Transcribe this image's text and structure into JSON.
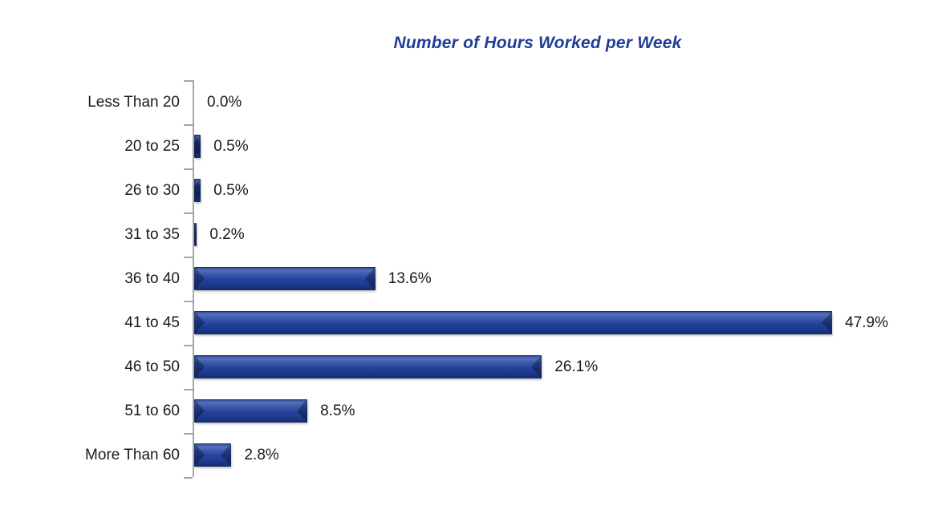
{
  "chart_data": {
    "type": "bar",
    "orientation": "horizontal",
    "title": "Number of Hours Worked per Week",
    "categories": [
      "Less Than 20",
      "20 to 25",
      "26 to 30",
      "31 to 35",
      "36 to 40",
      "41 to 45",
      "46 to 50",
      "51 to 60",
      "More Than 60"
    ],
    "values": [
      0.0,
      0.5,
      0.5,
      0.2,
      13.6,
      47.9,
      26.1,
      8.5,
      2.8
    ],
    "value_labels": [
      "0.0%",
      "0.5%",
      "0.5%",
      "0.2%",
      "13.6%",
      "47.9%",
      "26.1%",
      "8.5%",
      "2.8%"
    ],
    "xlabel": "",
    "ylabel": "",
    "xlim": [
      0,
      50
    ],
    "grid": false,
    "legend": "none",
    "data_labels": "outside-end",
    "bar_style": "3d-bevel",
    "colors": {
      "bar": "#24429C",
      "bar_highlight": "#5570BC",
      "bar_shadow": "#152A66",
      "title": "#1F3D96",
      "text": "#1A1A1A",
      "axis": "#A6A6A6"
    }
  }
}
